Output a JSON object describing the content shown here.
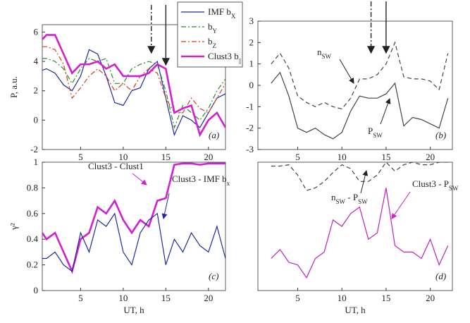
{
  "chart_data": [
    {
      "type": "line",
      "panel_label": "(a)",
      "ylabel": "P, a.u.",
      "xlim": [
        0.5,
        22
      ],
      "xticks": [
        5,
        10,
        15,
        20
      ],
      "ylim": [
        -2,
        6.5
      ],
      "yticks": [
        -2,
        0,
        2,
        4,
        6
      ],
      "x": [
        0.5,
        1,
        2,
        3,
        4,
        5,
        6,
        7,
        8,
        9,
        10,
        11,
        12,
        13,
        14,
        15,
        16,
        17,
        18,
        19,
        20,
        21,
        22
      ],
      "event_times": [
        13.3,
        15
      ],
      "legend": "top",
      "series": [
        {
          "name": "IMF b",
          "name_sub": "X",
          "color": "#1f2a9e",
          "dash": "solid",
          "values": [
            3.4,
            3.5,
            3.2,
            2.4,
            2.0,
            3.0,
            4.8,
            4.5,
            3.0,
            1.2,
            1.0,
            2.0,
            2.2,
            3.5,
            4.0,
            1.5,
            -1.0,
            0.3,
            0.0,
            -0.5,
            0.5,
            1.5,
            1.8
          ]
        },
        {
          "name": "b",
          "name_sub": "Y",
          "color": "#2a8a2a",
          "dash": "dashdot",
          "values": [
            4.2,
            4.2,
            4.0,
            3.5,
            2.5,
            3.5,
            4.2,
            4.0,
            4.2,
            2.5,
            2.5,
            3.5,
            3.8,
            4.0,
            3.8,
            2.0,
            -0.5,
            1.0,
            0.5,
            0.0,
            0.8,
            2.0,
            2.8
          ]
        },
        {
          "name": "b",
          "name_sub": "Z",
          "color": "#d04020",
          "dash": "dashdot",
          "values": [
            5.0,
            5.0,
            4.8,
            3.8,
            1.5,
            2.2,
            3.0,
            3.5,
            3.0,
            2.0,
            2.5,
            2.0,
            3.0,
            3.5,
            3.2,
            1.5,
            0.5,
            0.5,
            1.5,
            0.8,
            0.5,
            1.5,
            2.5
          ]
        },
        {
          "name": "Clust3 b",
          "name_sub": "||",
          "color": "#d020d0",
          "dash": "thick",
          "values": [
            5.5,
            5.8,
            5.8,
            4.5,
            3.2,
            3.8,
            3.8,
            4.0,
            3.5,
            3.8,
            3.0,
            3.0,
            3.0,
            3.2,
            3.8,
            3.5,
            0.5,
            0.8,
            1.0,
            -1.0,
            0.0,
            0.5,
            -0.5
          ]
        }
      ],
      "annotations": []
    },
    {
      "type": "line",
      "panel_label": "(b)",
      "xlim": [
        0.5,
        22.5
      ],
      "xticks": [
        5,
        10,
        15,
        20
      ],
      "ylim": [
        -3,
        3
      ],
      "yticks": [
        -3,
        -2,
        -1,
        0,
        1,
        2,
        3
      ],
      "x": [
        2,
        3,
        4,
        5,
        6,
        7,
        8,
        9,
        10,
        11,
        12,
        13,
        14,
        15,
        16,
        17,
        18,
        19,
        20,
        21,
        22
      ],
      "event_times": [
        13.3,
        15
      ],
      "series": [
        {
          "color": "#444444",
          "dash": "dashed",
          "values": [
            1.0,
            1.5,
            0.8,
            -0.5,
            -0.8,
            -1.0,
            -0.8,
            -1.0,
            -1.1,
            -0.6,
            0.3,
            0.3,
            0.5,
            1.0,
            2.0,
            0.4,
            0.3,
            0.3,
            0.2,
            -0.2,
            1.5
          ]
        },
        {
          "color": "#444444",
          "dash": "solid",
          "values": [
            0.1,
            0.6,
            -0.5,
            -2.0,
            -2.2,
            -2.0,
            -2.3,
            -2.5,
            -2.2,
            -1.2,
            -0.5,
            -0.6,
            -0.6,
            -0.4,
            0.1,
            -1.9,
            -1.5,
            -1.6,
            -1.8,
            -2.0,
            -0.6
          ]
        }
      ],
      "annotations": [
        {
          "parts": [
            {
              "t": "n"
            },
            {
              "s": "SW"
            }
          ]
        },
        {
          "parts": [
            {
              "t": "P"
            },
            {
              "s": "SW"
            }
          ]
        }
      ]
    },
    {
      "type": "line",
      "panel_label": "(c)",
      "ylabel": "γ²",
      "xlabel": "UT, h",
      "xlim": [
        0.5,
        22
      ],
      "xticks": [
        5,
        10,
        15,
        20
      ],
      "ylim": [
        0,
        1
      ],
      "yticks": [
        0,
        0.2,
        0.4,
        0.6,
        0.8,
        1
      ],
      "x": [
        0.5,
        1,
        2,
        3,
        4,
        5,
        6,
        7,
        8,
        9,
        10,
        11,
        12,
        13,
        14,
        15,
        16,
        17,
        18,
        19,
        20,
        21,
        22
      ],
      "series": [
        {
          "color": "#d020d0",
          "dash": "thick",
          "values": [
            0.45,
            0.4,
            0.45,
            0.3,
            0.15,
            0.4,
            0.45,
            0.65,
            0.6,
            0.7,
            0.55,
            0.45,
            0.55,
            0.5,
            0.7,
            0.72,
            0.98,
            0.99,
            0.99,
            0.98,
            0.99,
            0.99,
            0.99
          ]
        },
        {
          "color": "#1f2a9e",
          "dash": "solid",
          "values": [
            0.25,
            0.25,
            0.3,
            0.2,
            0.15,
            0.45,
            0.3,
            0.55,
            0.5,
            0.6,
            0.3,
            0.2,
            0.45,
            0.55,
            0.6,
            0.2,
            0.4,
            0.3,
            0.45,
            0.35,
            0.3,
            0.5,
            0.25
          ]
        }
      ],
      "annotations": [
        {
          "parts": [
            {
              "t": "Clust3 - Clust1"
            }
          ]
        },
        {
          "parts": [
            {
              "t": "Clust3 - IMF b"
            },
            {
              "s": "x"
            }
          ]
        }
      ]
    },
    {
      "type": "line",
      "panel_label": "(d)",
      "xlabel": "UT, h",
      "xlim": [
        0.5,
        22.5
      ],
      "xticks": [
        5,
        10,
        15,
        20
      ],
      "ylim": [
        0,
        1
      ],
      "x": [
        2,
        3,
        4,
        5,
        6,
        7,
        8,
        9,
        10,
        11,
        12,
        13,
        14,
        15,
        16,
        17,
        18,
        19,
        20,
        21,
        22
      ],
      "series": [
        {
          "color": "#444444",
          "dash": "dashed",
          "values": [
            0.97,
            0.97,
            0.98,
            0.9,
            0.78,
            0.8,
            0.85,
            0.92,
            0.98,
            0.95,
            0.85,
            0.85,
            0.9,
            1.0,
            0.93,
            0.98,
            1.0,
            0.98,
            0.98,
            1.0,
            1.0
          ]
        },
        {
          "color": "#c020c0",
          "dash": "solid",
          "values": [
            0.25,
            0.32,
            0.22,
            0.2,
            0.1,
            0.25,
            0.3,
            0.55,
            0.5,
            0.6,
            0.65,
            0.4,
            0.45,
            0.8,
            0.35,
            0.3,
            0.3,
            0.25,
            0.4,
            0.2,
            0.35
          ]
        }
      ],
      "annotations": [
        {
          "parts": [
            {
              "t": "n"
            },
            {
              "s": "SW"
            },
            {
              "t": " - P"
            },
            {
              "s": "SW"
            }
          ]
        },
        {
          "parts": [
            {
              "t": "Clust3 - P"
            },
            {
              "s": "SW"
            }
          ]
        }
      ]
    }
  ]
}
